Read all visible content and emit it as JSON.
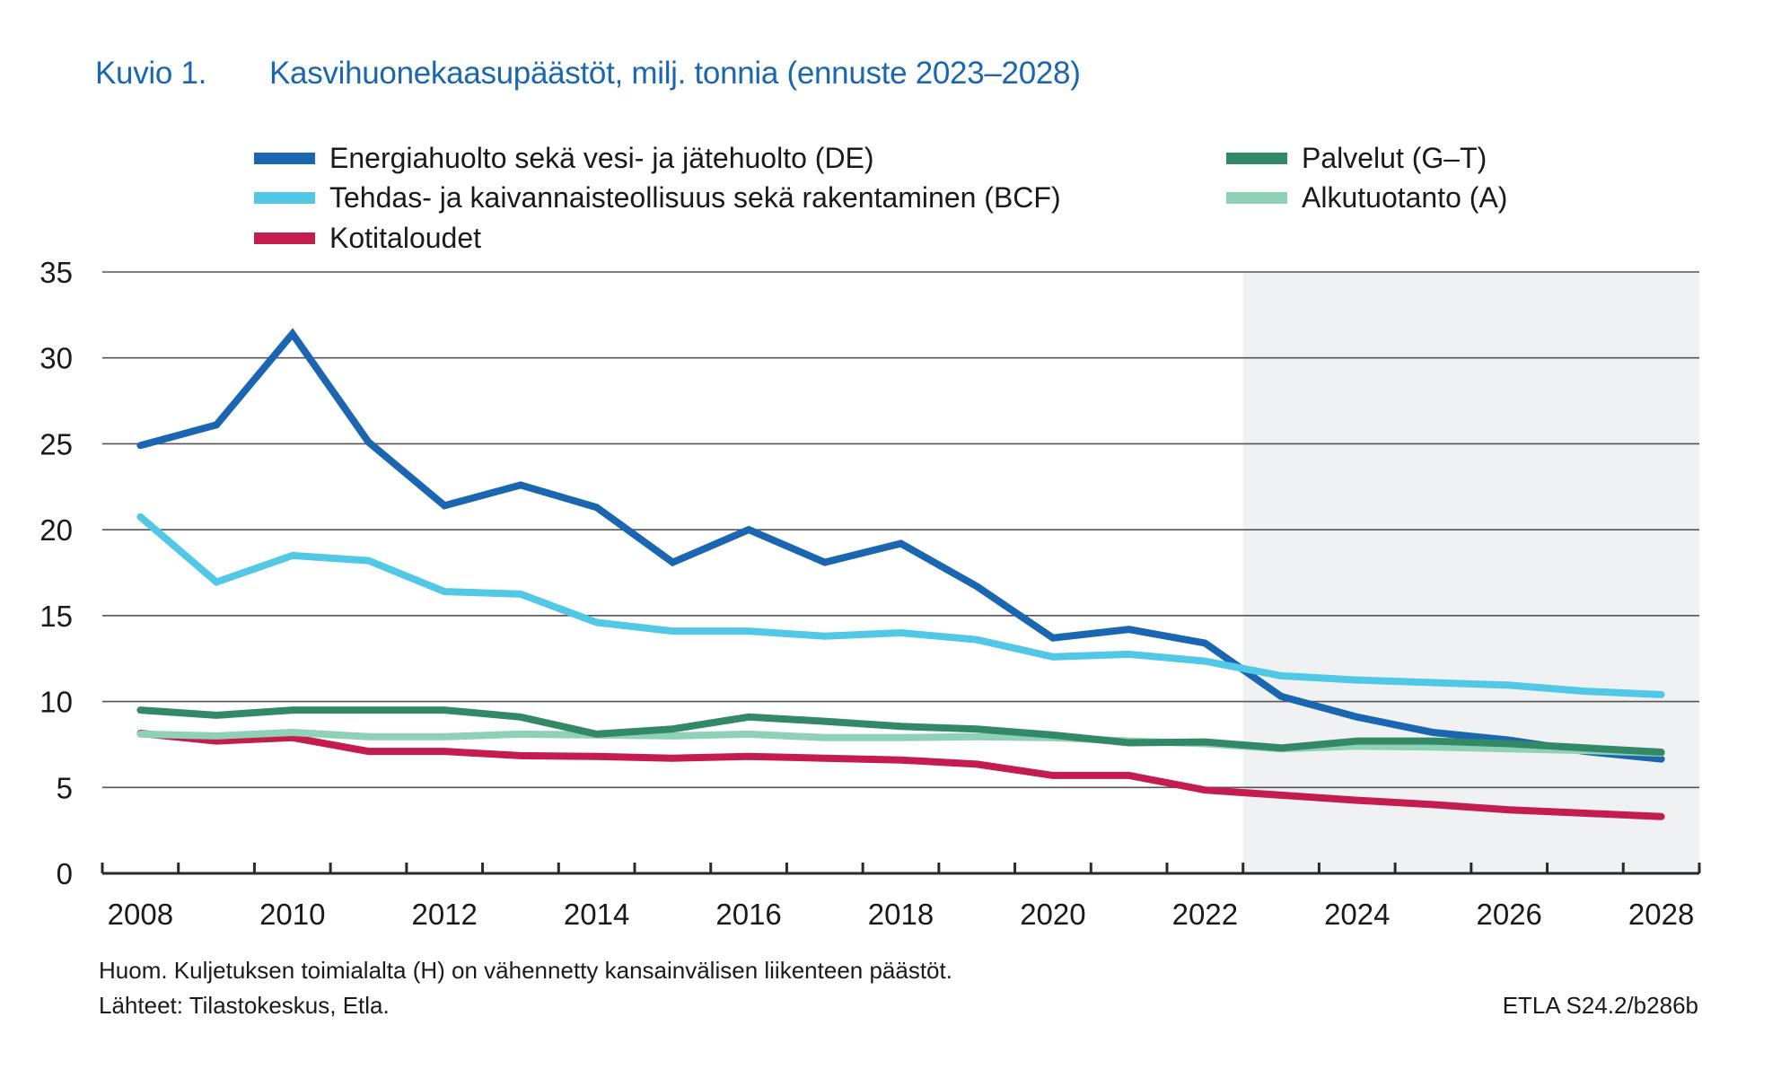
{
  "title": {
    "figure_number": "Kuvio 1.",
    "text": "Kasvihuonekaasupäästöt, milj. tonnia (ennuste 2023–2028)"
  },
  "legend": [
    {
      "label": "Energiahuolto sekä vesi- ja jätehuolto (DE)",
      "color": "#1a66b0"
    },
    {
      "label": "Tehdas- ja kaivannaisteollisuus sekä rakentaminen (BCF)",
      "color": "#50c8e6"
    },
    {
      "label": "Kotitaloudet",
      "color": "#c41c4f"
    },
    {
      "label": "Palvelut (G–T)",
      "color": "#338966"
    },
    {
      "label": "Alkutuotanto (A)",
      "color": "#8fd1b6"
    }
  ],
  "footnotes": {
    "note": "Huom. Kuljetuksen toimialalta (H) on vähennetty kansainvälisen liikenteen päästöt.",
    "sources": "Lähteet: Tilastokeskus, Etla.",
    "code": "ETLA S24.2/b286b"
  },
  "chart_data": {
    "type": "line",
    "title": "Kasvihuonekaasupäästöt, milj. tonnia (ennuste 2023–2028)",
    "xlabel": "",
    "ylabel": "milj. tonnia",
    "x": [
      2008,
      2009,
      2010,
      2011,
      2012,
      2013,
      2014,
      2015,
      2016,
      2017,
      2018,
      2019,
      2020,
      2021,
      2022,
      2023,
      2024,
      2025,
      2026,
      2027,
      2028
    ],
    "x_tick_labels": [
      "2008",
      "2010",
      "2012",
      "2014",
      "2016",
      "2018",
      "2020",
      "2022",
      "2024",
      "2026",
      "2028"
    ],
    "y_ticks": [
      0,
      5,
      10,
      15,
      20,
      25,
      30,
      35
    ],
    "ylim": [
      0,
      35
    ],
    "grid": true,
    "legend_position": "top",
    "forecast_shading": {
      "from": 2023,
      "to": 2028,
      "color": "#f0f1f3",
      "label": "ennuste"
    },
    "series": [
      {
        "name": "Energiahuolto sekä vesi- ja jätehuolto (DE)",
        "color": "#1a66b0",
        "values": [
          24.9,
          26.1,
          31.4,
          25.1,
          21.4,
          22.6,
          21.3,
          18.1,
          20.0,
          18.1,
          19.2,
          16.7,
          13.7,
          14.2,
          13.4,
          10.3,
          9.1,
          8.2,
          7.75,
          7.1,
          6.65
        ]
      },
      {
        "name": "Tehdas- ja kaivannaisteollisuus sekä rakentaminen (BCF)",
        "color": "#50c8e6",
        "values": [
          20.75,
          16.95,
          18.5,
          18.2,
          16.4,
          16.25,
          14.6,
          14.1,
          14.1,
          13.8,
          14.0,
          13.6,
          12.6,
          12.75,
          12.35,
          11.5,
          11.25,
          11.1,
          10.95,
          10.6,
          10.4
        ]
      },
      {
        "name": "Kotitaloudet",
        "color": "#c41c4f",
        "values": [
          8.15,
          7.7,
          7.9,
          7.1,
          7.1,
          6.85,
          6.8,
          6.7,
          6.8,
          6.7,
          6.6,
          6.35,
          5.7,
          5.7,
          4.85,
          4.55,
          4.25,
          4.0,
          3.7,
          3.5,
          3.3
        ]
      },
      {
        "name": "Alkutuotanto (A)",
        "color": "#8fd1b6",
        "values": [
          8.1,
          8.0,
          8.2,
          7.95,
          7.95,
          8.1,
          8.05,
          8.0,
          8.1,
          7.9,
          7.9,
          7.95,
          7.9,
          7.7,
          7.55,
          7.25,
          7.4,
          7.35,
          7.25,
          7.15,
          7.0
        ]
      },
      {
        "name": "Palvelut (G–T)",
        "color": "#338966",
        "values": [
          9.5,
          9.2,
          9.5,
          9.5,
          9.5,
          9.1,
          8.1,
          8.4,
          9.1,
          8.85,
          8.55,
          8.4,
          8.05,
          7.6,
          7.65,
          7.3,
          7.7,
          7.7,
          7.55,
          7.3,
          7.05
        ]
      }
    ]
  }
}
